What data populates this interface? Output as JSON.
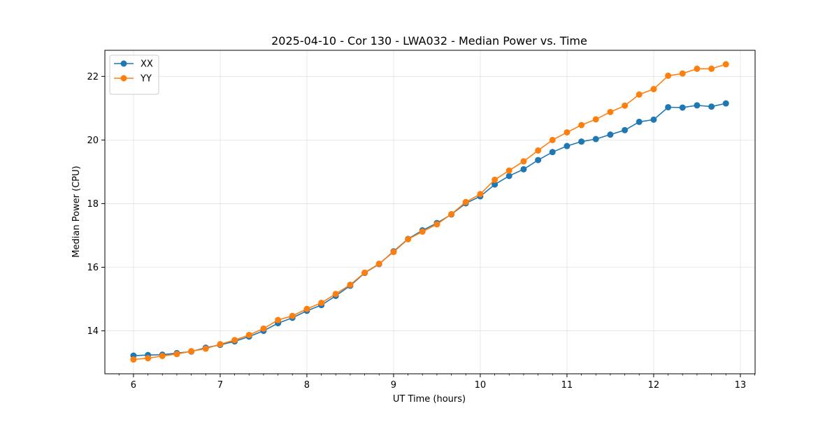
{
  "chart_data": {
    "type": "line",
    "title": "2025-04-10 - Cor 130 - LWA032 - Median Power vs. Time",
    "xlabel": "UT Time (hours)",
    "ylabel": "Median Power (CPU)",
    "xlim": [
      5.67,
      13.17
    ],
    "ylim": [
      12.65,
      22.82
    ],
    "xticks": [
      6,
      7,
      8,
      9,
      10,
      11,
      12,
      13
    ],
    "yticks": [
      14,
      16,
      18,
      20,
      22
    ],
    "grid": true,
    "legend_position": "top-left",
    "x": [
      6.0,
      6.167,
      6.333,
      6.5,
      6.667,
      6.833,
      7.0,
      7.167,
      7.333,
      7.5,
      7.667,
      7.833,
      8.0,
      8.167,
      8.333,
      8.5,
      8.667,
      8.833,
      9.0,
      9.167,
      9.333,
      9.5,
      9.667,
      9.833,
      10.0,
      10.167,
      10.333,
      10.5,
      10.667,
      10.833,
      11.0,
      11.167,
      11.333,
      11.5,
      11.667,
      11.833,
      12.0,
      12.167,
      12.333,
      12.5,
      12.667,
      12.833
    ],
    "series": [
      {
        "name": "XX",
        "color": "#1f77b4",
        "values": [
          13.22,
          13.24,
          13.25,
          13.3,
          13.35,
          13.47,
          13.56,
          13.67,
          13.82,
          14.0,
          14.24,
          14.41,
          14.63,
          14.81,
          15.1,
          15.42,
          15.82,
          16.1,
          16.5,
          16.89,
          17.16,
          17.39,
          17.66,
          18.01,
          18.23,
          18.6,
          18.87,
          19.08,
          19.37,
          19.62,
          19.81,
          19.95,
          20.03,
          20.17,
          20.31,
          20.57,
          20.64,
          21.03,
          21.02,
          21.09,
          21.05,
          21.15
        ]
      },
      {
        "name": "YY",
        "color": "#ff7f0e",
        "values": [
          13.1,
          13.14,
          13.21,
          13.27,
          13.36,
          13.44,
          13.58,
          13.71,
          13.87,
          14.07,
          14.34,
          14.47,
          14.69,
          14.88,
          15.16,
          15.45,
          15.83,
          16.11,
          16.48,
          16.88,
          17.12,
          17.35,
          17.67,
          18.05,
          18.3,
          18.75,
          19.04,
          19.33,
          19.67,
          20.0,
          20.24,
          20.47,
          20.65,
          20.88,
          21.08,
          21.43,
          21.6,
          22.02,
          22.09,
          22.24,
          22.24,
          22.38
        ]
      }
    ]
  }
}
